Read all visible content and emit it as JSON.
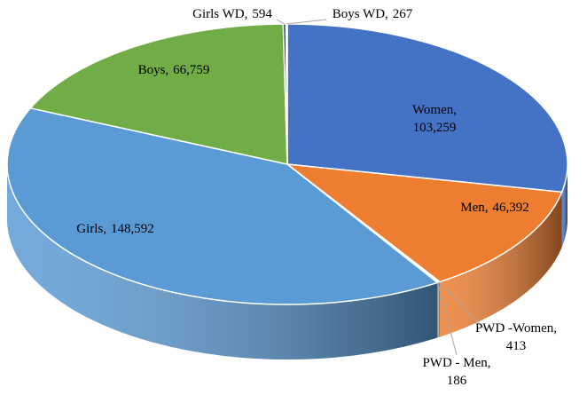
{
  "chart_data": {
    "type": "pie3d",
    "categories": [
      "Women",
      "Men",
      "PWD -Women",
      "PWD - Men",
      "Girls",
      "Boys",
      "Girls WD",
      "Boys WD"
    ],
    "values": [
      103259,
      46392,
      413,
      186,
      148592,
      66759,
      594,
      267
    ],
    "value_labels": [
      "103,259",
      "46,392",
      "413",
      "186",
      "148,592",
      "66,759",
      "594",
      "267"
    ],
    "label_separator": ",",
    "colors": [
      "#4472c4",
      "#ed7d31",
      "#a5a5a5",
      "#ffc000",
      "#5b9bd5",
      "#70ad47",
      "#264478",
      "#9e480e"
    ]
  }
}
